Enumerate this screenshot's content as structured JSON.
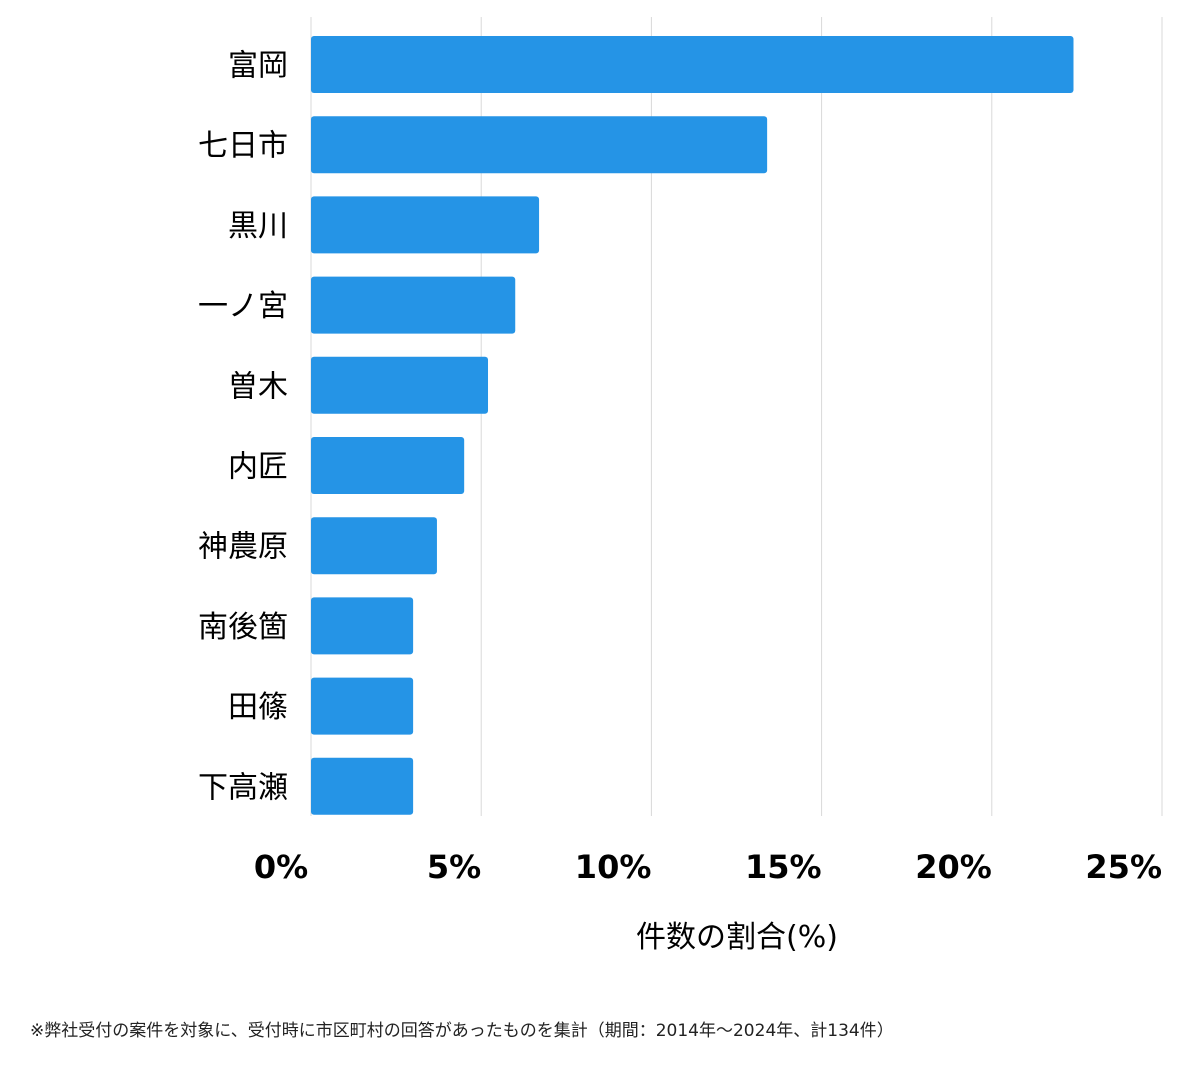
{
  "chart_data": {
    "type": "bar",
    "orientation": "horizontal",
    "categories": [
      "富岡",
      "七日市",
      "黒川",
      "一ノ宮",
      "曽木",
      "内匠",
      "神農原",
      "南後箇",
      "田篠",
      "下高瀬"
    ],
    "values": [
      22.4,
      13.4,
      6.7,
      6.0,
      5.2,
      4.5,
      3.7,
      3.0,
      3.0,
      3.0
    ],
    "xlim": [
      0,
      25
    ],
    "xticks": [
      0,
      5,
      10,
      15,
      20,
      25
    ],
    "tick_labels": [
      "0%",
      "5%",
      "10%",
      "15%",
      "20%",
      "25%"
    ],
    "xlabel": "件数の割合(%)",
    "ylabel": "",
    "grid": true,
    "colors": {
      "bar": "#2594e6",
      "grid": "#d9d9d9",
      "text": "#000000"
    }
  },
  "footnote": "※弊社受付の案件を対象に、受付時に市区町村の回答があったものを集計（期間：2014年～2024年、計134件）"
}
